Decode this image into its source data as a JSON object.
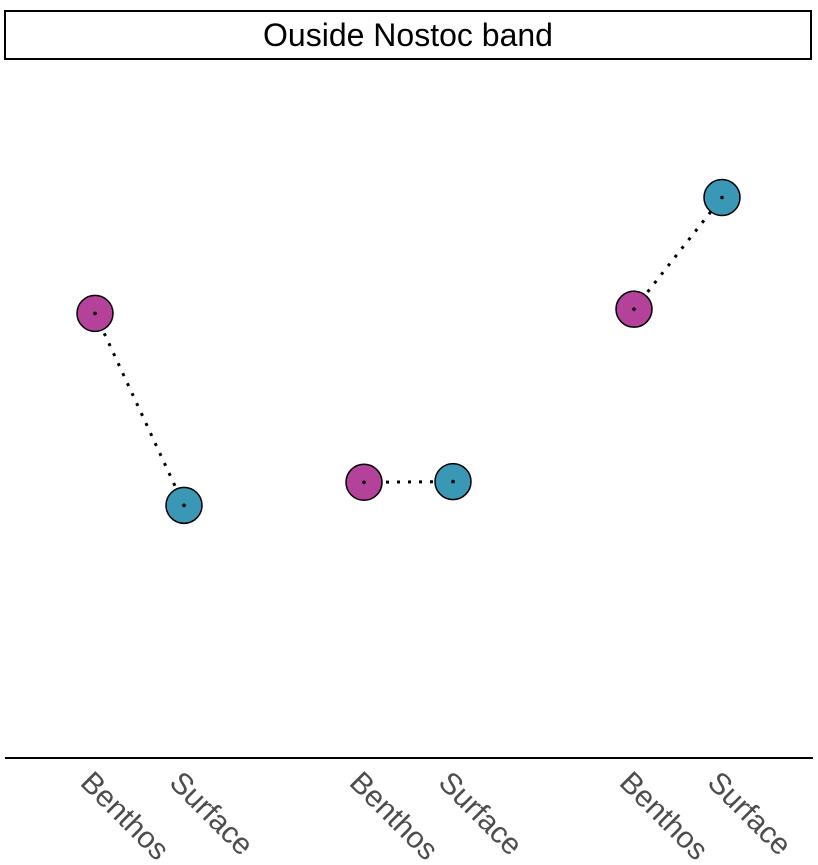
{
  "chart_data": {
    "type": "scatter",
    "title": "Ouside Nostoc band",
    "xlabel": "",
    "ylabel": "",
    "categories": [
      "Benthos",
      "Surface",
      "Benthos",
      "Surface",
      "Benthos",
      "Surface"
    ],
    "groups": [
      {
        "points": [
          {
            "x": "Benthos",
            "y": 0.637
          },
          {
            "x": "Surface",
            "y": 0.362
          }
        ]
      },
      {
        "points": [
          {
            "x": "Benthos",
            "y": 0.395
          },
          {
            "x": "Surface",
            "y": 0.396
          }
        ]
      },
      {
        "points": [
          {
            "x": "Benthos",
            "y": 0.643
          },
          {
            "x": "Surface",
            "y": 0.803
          }
        ]
      }
    ],
    "ylim": [
      0,
      1
    ],
    "grid": false,
    "connector_style": "dotted",
    "colors": {
      "Benthos": "#b5429a",
      "Surface": "#3a98b6"
    }
  }
}
